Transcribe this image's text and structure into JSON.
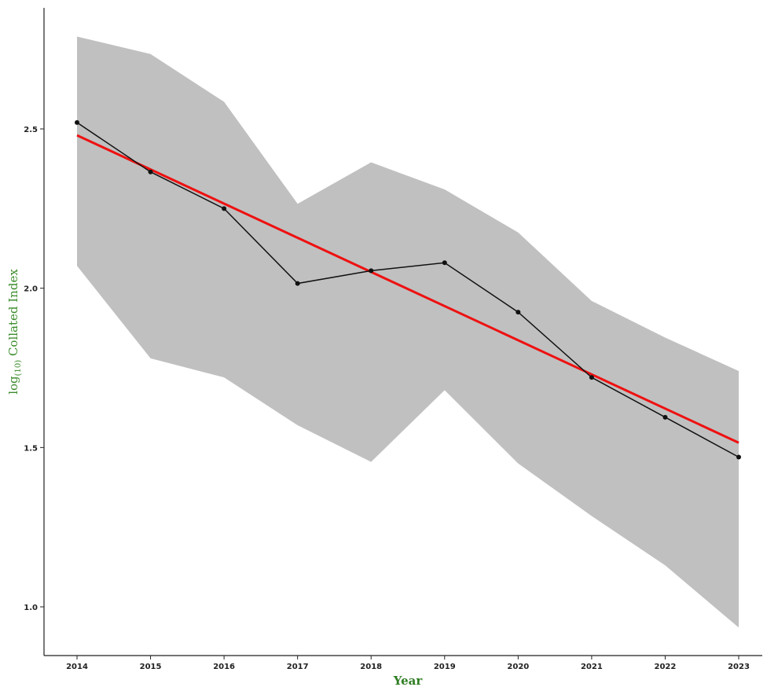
{
  "chart_data": {
    "type": "line",
    "xlabel": "Year",
    "ylabel_parts": {
      "main_before": "log",
      "subscript": "(10)",
      "main_after": " Collated Index"
    },
    "x": [
      2014,
      2015,
      2016,
      2017,
      2018,
      2019,
      2020,
      2021,
      2022,
      2023
    ],
    "x_tick_labels": [
      "2014",
      "2015",
      "2016",
      "2017",
      "2018",
      "2019",
      "2020",
      "2021",
      "2022",
      "2023"
    ],
    "y_ticks": [
      1.0,
      1.5,
      2.0,
      2.5
    ],
    "y_tick_labels": [
      "1.0",
      "1.5",
      "2.0",
      "2.5"
    ],
    "ylim": [
      0.85,
      2.88
    ],
    "series": [
      {
        "values": [
          2.52,
          2.365,
          2.25,
          2.015,
          2.055,
          2.08,
          1.925,
          1.72,
          1.595,
          1.47
        ],
        "color": "#111111",
        "marker": "point"
      }
    ],
    "confidence_band": {
      "upper": [
        2.79,
        2.735,
        2.585,
        2.265,
        2.395,
        2.31,
        2.175,
        1.96,
        1.845,
        1.74
      ],
      "lower": [
        2.07,
        1.78,
        1.72,
        1.57,
        1.455,
        1.68,
        1.45,
        1.285,
        1.13,
        0.935
      ],
      "color": "#c0c0c0"
    },
    "trend_line": {
      "start": 2.48,
      "end": 1.515,
      "color": "#ee1111"
    },
    "grid": false
  }
}
